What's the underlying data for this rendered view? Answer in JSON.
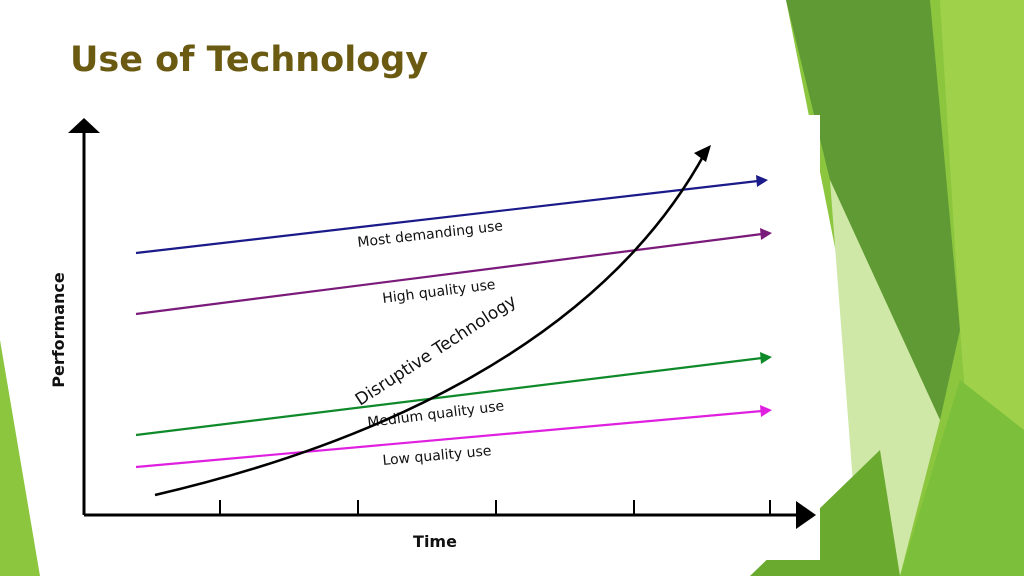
{
  "slide": {
    "title": "Use of Technology"
  },
  "diagram": {
    "axis_x_label": "Time",
    "axis_y_label": "Performance",
    "curve_label": "Disruptive Technology",
    "lines": [
      {
        "label": "Most demanding use",
        "color": "#1a1a8a"
      },
      {
        "label": "High quality use",
        "color": "#7a1a7a"
      },
      {
        "label": "Medium quality use",
        "color": "#0f8a2a"
      },
      {
        "label": "Low quality use",
        "color": "#e020e0"
      }
    ]
  },
  "theme": {
    "title_color": "#6b5a12",
    "accent_green": "#7cbf3a"
  }
}
